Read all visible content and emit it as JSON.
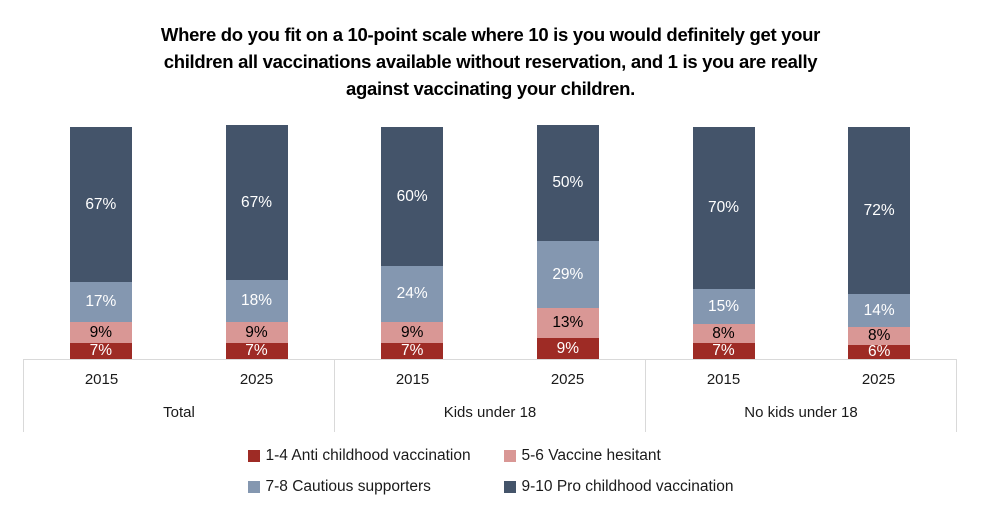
{
  "title": {
    "text": "Where do you fit on a 10-point scale where 10 is you would definitely get your children all vaccinations available without reservation, and 1 is you are really against vaccinating your children.",
    "lines": [
      "Where do you fit on a 10-point scale where 10 is you would definitely get your",
      "children all vaccinations available without reservation, and 1 is you are really",
      "against vaccinating your children."
    ]
  },
  "chart_data": {
    "type": "bar",
    "stacked": true,
    "grid": false,
    "legend_position": "bottom",
    "value_suffix": "%",
    "ylim": [
      0,
      100
    ],
    "groups": [
      "Total",
      "Kids under 18",
      "No kids under 18"
    ],
    "categories": [
      "2015",
      "2025",
      "2015",
      "2025",
      "2015",
      "2025"
    ],
    "series": [
      {
        "name": "1-4 Anti childhood vaccination",
        "color": "#9E2B25",
        "label_color": "#FFFFFF",
        "values": [
          7,
          7,
          7,
          9,
          7,
          6
        ]
      },
      {
        "name": "5-6 Vaccine hesitant",
        "color": "#D99795",
        "label_color": "#000000",
        "values": [
          9,
          9,
          9,
          13,
          8,
          8
        ]
      },
      {
        "name": "7-8 Cautious supporters",
        "color": "#8497B0",
        "label_color": "#FFFFFF",
        "values": [
          17,
          18,
          24,
          29,
          15,
          14
        ]
      },
      {
        "name": "9-10 Pro childhood vaccination",
        "color": "#44546A",
        "label_color": "#FFFFFF",
        "values": [
          67,
          67,
          60,
          50,
          70,
          72
        ]
      }
    ],
    "colors": {
      "axis_border": "#D9D9D9",
      "axis_text": "#1A1A1A",
      "title_text": "#000000"
    }
  }
}
